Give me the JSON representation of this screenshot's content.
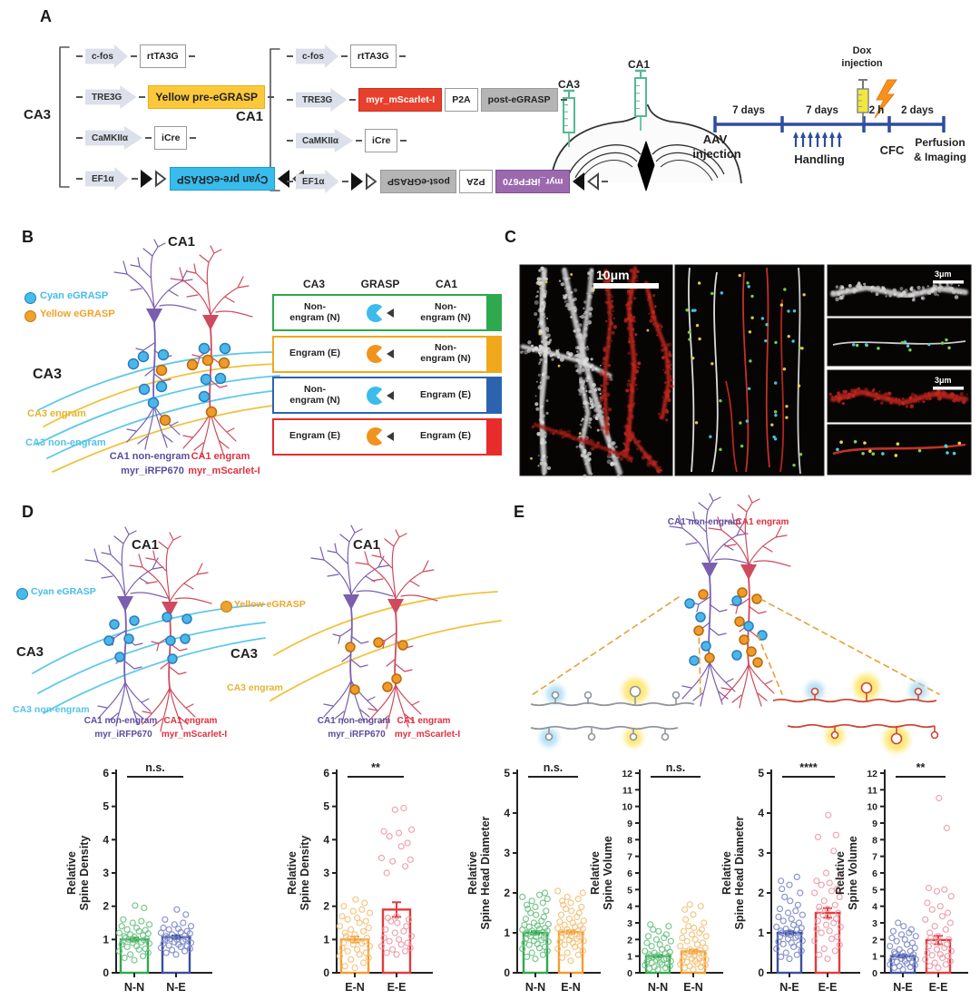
{
  "panels": {
    "a": "A",
    "b": "B",
    "c": "C",
    "d": "D",
    "e": "E"
  },
  "constructs": {
    "ca3": {
      "label": "CA3",
      "rows": [
        {
          "promoter": "c-fos",
          "genes": [
            {
              "t": "rtTA3G",
              "c": "white"
            }
          ],
          "lox": false
        },
        {
          "promoter": "TRE3G",
          "genes": [
            {
              "t": "Yellow pre-eGRASP",
              "c": "yellow"
            }
          ],
          "lox": false
        },
        {
          "promoter": "CaMKIIα",
          "genes": [
            {
              "t": "iCre",
              "c": "white"
            }
          ],
          "lox": false
        },
        {
          "promoter": "EF1α",
          "genes": [
            {
              "t": "Cyan pre-eGRASP",
              "c": "cyan",
              "flip": true
            }
          ],
          "lox": true
        }
      ]
    },
    "ca1": {
      "label": "CA1",
      "rows": [
        {
          "promoter": "c-fos",
          "genes": [
            {
              "t": "rtTA3G",
              "c": "white"
            }
          ],
          "lox": false
        },
        {
          "promoter": "TRE3G",
          "genes": [
            {
              "t": "myr_mScarlet-I",
              "c": "red"
            },
            {
              "t": "P2A",
              "c": "white"
            },
            {
              "t": "post-eGRASP",
              "c": "gray"
            }
          ],
          "lox": false
        },
        {
          "promoter": "CaMKIIα",
          "genes": [
            {
              "t": "iCre",
              "c": "white"
            }
          ],
          "lox": false
        },
        {
          "promoter": "EF1α",
          "genes": [
            {
              "t": "post-eGRASP",
              "c": "gray",
              "flip": true
            },
            {
              "t": "P2A",
              "c": "white",
              "flip": true
            },
            {
              "t": "myr_iRFP670",
              "c": "purple",
              "flip": true
            }
          ],
          "lox": true
        }
      ]
    }
  },
  "injection": {
    "ca3": "CA3",
    "ca1": "CA1"
  },
  "timeline": {
    "seg1": "7 days",
    "seg2": "7 days",
    "seg3": "2 h",
    "seg4": "2 days",
    "aav1": "AAV",
    "aav2": "injection",
    "handling": "Handling",
    "dox1": "Dox",
    "dox2": "injection",
    "cfc": "CFC",
    "perf1": "Perfusion",
    "perf2": "& Imaging",
    "color": "#2e4da0"
  },
  "panel_b": {
    "title": "CA1",
    "legend": [
      {
        "label": "Cyan eGRASP",
        "color": "#45bcee"
      },
      {
        "label": "Yellow eGRASP",
        "color": "#f0a32a"
      }
    ],
    "ca3": "CA3",
    "ca3_engram": "CA3 engram",
    "ca3_non": "CA3 non-engram",
    "ca1_non": "CA1 non-engram",
    "ca1_eng": "CA1 engram",
    "irfp": "myr_iRFP670",
    "mscarlet": "myr_mScarlet-I"
  },
  "grasp_table": {
    "headers": [
      "CA3",
      "GRASP",
      "CA1"
    ],
    "rows": [
      {
        "ca3": [
          "Non-",
          "engram (N)"
        ],
        "ca1": [
          "Non-",
          "engram (N)"
        ],
        "grasp": "#3cbbec",
        "color": "#2ea94d"
      },
      {
        "ca3": [
          "Engram (E)"
        ],
        "ca1": [
          "Non-",
          "engram (N)"
        ],
        "grasp": "#f0941e",
        "color": "#f0a81c"
      },
      {
        "ca3": [
          "Non-",
          "engram (N)"
        ],
        "ca1": [
          "Engram (E)"
        ],
        "grasp": "#3cbbec",
        "color": "#2c63ae"
      },
      {
        "ca3": [
          "Engram (E)"
        ],
        "ca1": [
          "Engram (E)"
        ],
        "grasp": "#f0941e",
        "color": "#e82b2b"
      }
    ]
  },
  "panel_c": {
    "scale_main": "10μm",
    "scale_small_1": "3μm",
    "scale_small_2": "3μm"
  },
  "panel_d": {
    "title_left": "CA1",
    "title_right": "CA1",
    "legend_left": {
      "label": "Cyan eGRASP",
      "color": "#45bcee"
    },
    "legend_right": {
      "label": "Yellow eGRASP",
      "color": "#f0a32a"
    },
    "ca3_left": "CA3",
    "ca3_right": "CA3",
    "ca3_non": "CA3 non-engram",
    "ca3_engram": "CA3 engram",
    "ca1_non": "CA1 non-engram",
    "ca1_eng": "CA1 engram",
    "irfp": "myr_iRFP670",
    "mscarlet": "myr_mScarlet-I"
  },
  "panel_e": {
    "ca1_non": "CA1 non-engram",
    "ca1_eng": "CA1 engram"
  },
  "chart_data": [
    {
      "id": "rel-spine-density-n",
      "type": "bar-scatter",
      "ylabel": [
        "Relative",
        "Spine Density"
      ],
      "ylim": [
        0,
        6
      ],
      "ystep": 1,
      "sig": "n.s.",
      "categories": [
        "N-N",
        "N-E"
      ],
      "bars": [
        {
          "label": "N-N",
          "value": 1.0,
          "err": 0.06,
          "color": "#2fa84c",
          "pt": "#6cc184",
          "points": [
            0.38,
            0.45,
            0.5,
            0.55,
            0.6,
            0.65,
            0.7,
            0.72,
            0.78,
            0.8,
            0.85,
            0.88,
            0.9,
            0.92,
            0.95,
            0.98,
            1.0,
            1.0,
            1.02,
            1.05,
            1.08,
            1.1,
            1.12,
            1.15,
            1.18,
            1.2,
            1.25,
            1.28,
            1.3,
            1.35,
            1.4,
            1.45,
            1.5,
            1.55,
            1.6,
            1.95,
            2.02
          ]
        },
        {
          "label": "N-E",
          "value": 1.07,
          "err": 0.05,
          "color": "#3a4fa0",
          "pt": "#7d89c7",
          "points": [
            0.55,
            0.6,
            0.65,
            0.68,
            0.72,
            0.75,
            0.78,
            0.8,
            0.82,
            0.85,
            0.88,
            0.9,
            0.92,
            0.95,
            0.98,
            1.0,
            1.0,
            1.02,
            1.05,
            1.05,
            1.08,
            1.1,
            1.12,
            1.15,
            1.18,
            1.2,
            1.22,
            1.25,
            1.3,
            1.32,
            1.35,
            1.4,
            1.45,
            1.5,
            1.6,
            1.75,
            1.9
          ]
        }
      ]
    },
    {
      "id": "rel-spine-density-e",
      "type": "bar-scatter",
      "ylabel": [
        "Relative",
        "Spine Density"
      ],
      "ylim": [
        0,
        6
      ],
      "ystep": 1,
      "sig": "**",
      "categories": [
        "E-N",
        "E-E"
      ],
      "bars": [
        {
          "label": "E-N",
          "value": 1.0,
          "err": 0.09,
          "color": "#f59b2c",
          "pt": "#f3c078",
          "points": [
            0.15,
            0.2,
            0.3,
            0.4,
            0.45,
            0.5,
            0.55,
            0.6,
            0.65,
            0.7,
            0.75,
            0.8,
            0.85,
            0.88,
            0.9,
            0.95,
            1.0,
            1.02,
            1.05,
            1.1,
            1.15,
            1.2,
            1.25,
            1.3,
            1.35,
            1.4,
            1.5,
            1.55,
            1.6,
            1.65,
            1.7,
            1.8,
            1.85,
            1.9,
            2.0,
            2.1,
            2.2
          ]
        },
        {
          "label": "E-E",
          "value": 1.9,
          "err": 0.22,
          "color": "#e23b3b",
          "pt": "#ec9aa6",
          "points": [
            0.55,
            0.6,
            0.65,
            0.7,
            0.75,
            0.8,
            0.85,
            0.9,
            0.95,
            1.0,
            1.05,
            1.1,
            1.2,
            1.25,
            1.3,
            1.4,
            1.5,
            1.55,
            1.6,
            1.65,
            1.7,
            3.0,
            3.2,
            3.35,
            3.4,
            3.45,
            3.8,
            3.9,
            4.1,
            4.2,
            4.25,
            4.3,
            4.9,
            4.95
          ]
        }
      ]
    },
    {
      "id": "rel-head-diam-n",
      "type": "bar-scatter",
      "ylabel": [
        "Relative",
        "Spine Head Diameter"
      ],
      "ylim": [
        0,
        5
      ],
      "ystep": 1,
      "sig": "n.s.",
      "categories": [
        "N-N",
        "E-N"
      ],
      "bars": [
        {
          "label": "N-N",
          "value": 1.0,
          "err": 0.04,
          "color": "#2fa84c",
          "pt": "#6cc184",
          "points": [
            0.35,
            0.4,
            0.45,
            0.5,
            0.55,
            0.6,
            0.62,
            0.65,
            0.7,
            0.72,
            0.75,
            0.78,
            0.8,
            0.82,
            0.85,
            0.88,
            0.9,
            0.92,
            0.95,
            0.97,
            1.0,
            1.0,
            1.02,
            1.05,
            1.05,
            1.08,
            1.1,
            1.12,
            1.15,
            1.18,
            1.2,
            1.22,
            1.25,
            1.3,
            1.35,
            1.4,
            1.45,
            1.5,
            1.55,
            1.6,
            1.65,
            1.7,
            1.75,
            1.8,
            1.85,
            1.9,
            1.95,
            2.0
          ]
        },
        {
          "label": "E-N",
          "value": 1.02,
          "err": 0.04,
          "color": "#f59b2c",
          "pt": "#f3c078",
          "points": [
            0.3,
            0.38,
            0.45,
            0.5,
            0.55,
            0.6,
            0.65,
            0.68,
            0.7,
            0.75,
            0.78,
            0.8,
            0.82,
            0.85,
            0.88,
            0.9,
            0.92,
            0.95,
            0.98,
            1.0,
            1.0,
            1.02,
            1.05,
            1.08,
            1.1,
            1.12,
            1.15,
            1.18,
            1.2,
            1.25,
            1.28,
            1.3,
            1.35,
            1.4,
            1.45,
            1.5,
            1.55,
            1.6,
            1.65,
            1.7,
            1.75,
            1.8,
            1.85,
            1.9,
            2.0,
            2.05
          ]
        }
      ]
    },
    {
      "id": "rel-spine-vol-n",
      "type": "bar-scatter",
      "ylabel": [
        "Relative",
        "Spine Volume"
      ],
      "ylim": [
        0,
        12
      ],
      "ystep": 1,
      "sig": "n.s.",
      "categories": [
        "N-N",
        "E-N"
      ],
      "bars": [
        {
          "label": "N-N",
          "value": 1.0,
          "err": 0.07,
          "color": "#2fa84c",
          "pt": "#6cc184",
          "points": [
            0.2,
            0.25,
            0.3,
            0.35,
            0.4,
            0.45,
            0.5,
            0.55,
            0.6,
            0.62,
            0.65,
            0.7,
            0.75,
            0.8,
            0.82,
            0.85,
            0.9,
            0.95,
            1.0,
            1.0,
            1.05,
            1.1,
            1.15,
            1.2,
            1.25,
            1.3,
            1.4,
            1.5,
            1.6,
            1.7,
            1.8,
            1.9,
            2.0,
            2.1,
            2.2,
            2.3,
            2.5,
            2.6,
            2.8,
            2.9
          ]
        },
        {
          "label": "E-N",
          "value": 1.28,
          "err": 0.12,
          "color": "#f59b2c",
          "pt": "#f3c078",
          "points": [
            0.2,
            0.3,
            0.35,
            0.4,
            0.45,
            0.5,
            0.55,
            0.6,
            0.65,
            0.7,
            0.75,
            0.8,
            0.85,
            0.9,
            0.95,
            1.0,
            1.05,
            1.1,
            1.15,
            1.2,
            1.25,
            1.3,
            1.35,
            1.4,
            1.5,
            1.6,
            1.7,
            1.8,
            1.9,
            2.0,
            2.1,
            2.2,
            2.3,
            2.4,
            2.5,
            2.6,
            2.7,
            2.8,
            3.0,
            3.2,
            3.5,
            3.8,
            4.0,
            4.1
          ]
        }
      ]
    },
    {
      "id": "rel-head-diam-e",
      "type": "bar-scatter",
      "ylabel": [
        "Relative",
        "Spine Head Diameter"
      ],
      "ylim": [
        0,
        5
      ],
      "ystep": 1,
      "sig": "****",
      "categories": [
        "N-E",
        "E-E"
      ],
      "bars": [
        {
          "label": "N-E",
          "value": 1.0,
          "err": 0.04,
          "color": "#3a4fa0",
          "pt": "#7d89c7",
          "points": [
            0.35,
            0.4,
            0.45,
            0.5,
            0.55,
            0.6,
            0.65,
            0.7,
            0.72,
            0.75,
            0.78,
            0.8,
            0.85,
            0.88,
            0.9,
            0.92,
            0.95,
            0.98,
            1.0,
            1.0,
            1.02,
            1.05,
            1.08,
            1.1,
            1.12,
            1.15,
            1.2,
            1.25,
            1.3,
            1.35,
            1.4,
            1.45,
            1.5,
            1.55,
            1.6,
            1.7,
            1.8,
            1.9,
            2.0,
            2.1,
            2.2,
            2.3,
            2.4
          ]
        },
        {
          "label": "E-E",
          "value": 1.5,
          "err": 0.12,
          "color": "#e23b3b",
          "pt": "#ec9aa6",
          "points": [
            0.35,
            0.45,
            0.55,
            0.6,
            0.7,
            0.8,
            0.85,
            0.9,
            1.0,
            1.05,
            1.1,
            1.15,
            1.2,
            1.25,
            1.3,
            1.35,
            1.4,
            1.45,
            1.5,
            1.55,
            1.6,
            1.65,
            1.7,
            1.8,
            1.9,
            2.0,
            2.05,
            2.1,
            2.2,
            2.25,
            2.3,
            2.4,
            2.5,
            3.05,
            3.4,
            3.45,
            3.95
          ]
        }
      ]
    },
    {
      "id": "rel-spine-vol-e",
      "type": "bar-scatter",
      "ylabel": [
        "Relative",
        "Spine Volume"
      ],
      "ylim": [
        0,
        12
      ],
      "ystep": 1,
      "sig": "**",
      "categories": [
        "N-E",
        "E-E"
      ],
      "bars": [
        {
          "label": "N-E",
          "value": 1.0,
          "err": 0.08,
          "color": "#3a4fa0",
          "pt": "#7d89c7",
          "points": [
            0.2,
            0.3,
            0.35,
            0.4,
            0.45,
            0.5,
            0.55,
            0.6,
            0.65,
            0.7,
            0.75,
            0.8,
            0.85,
            0.9,
            0.95,
            1.0,
            1.0,
            1.05,
            1.1,
            1.15,
            1.2,
            1.25,
            1.3,
            1.4,
            1.5,
            1.6,
            1.7,
            1.8,
            1.9,
            2.0,
            2.1,
            2.2,
            2.3,
            2.4,
            2.5,
            2.6,
            2.8,
            3.0
          ]
        },
        {
          "label": "E-E",
          "value": 1.97,
          "err": 0.25,
          "color": "#e23b3b",
          "pt": "#ec9aa6",
          "points": [
            0.3,
            0.4,
            0.5,
            0.6,
            0.7,
            0.8,
            0.9,
            1.0,
            1.05,
            1.1,
            1.2,
            1.3,
            1.4,
            1.5,
            1.6,
            1.7,
            1.8,
            1.9,
            2.0,
            2.1,
            2.2,
            2.4,
            2.6,
            2.8,
            3.0,
            3.2,
            3.4,
            3.6,
            3.8,
            4.0,
            4.2,
            4.6,
            4.9,
            5.0,
            5.1,
            8.7,
            10.5
          ]
        }
      ]
    }
  ]
}
